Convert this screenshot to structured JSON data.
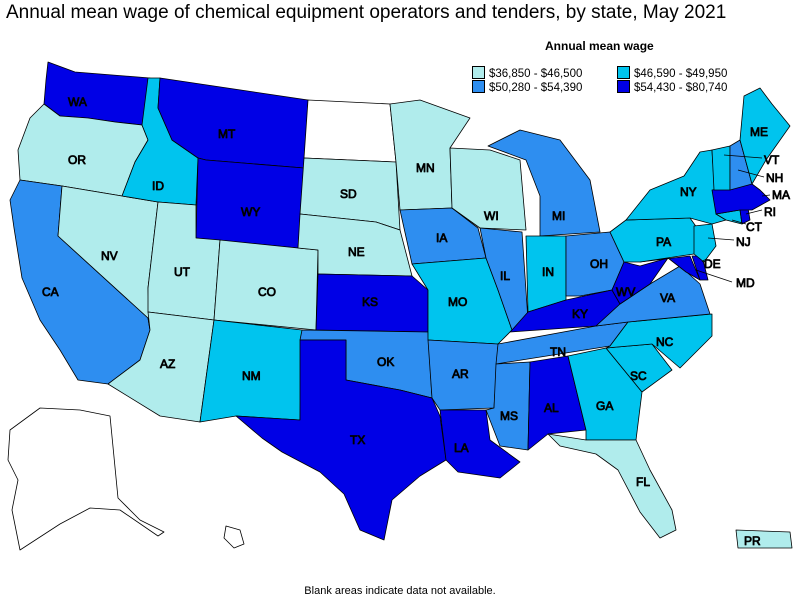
{
  "title": "Annual mean wage of chemical equipment operators and tenders, by state, May 2021",
  "legend": {
    "title": "Annual mean wage",
    "items": [
      {
        "label": "$36,850 - $46,500",
        "color": "#b0ecec"
      },
      {
        "label": "$46,590 - $49,950",
        "color": "#00c4ee"
      },
      {
        "label": "$50,280 - $54,390",
        "color": "#2e8ef0"
      },
      {
        "label": "$54,430 - $80,740",
        "color": "#0000e6"
      }
    ]
  },
  "no_data_color": "#ffffff",
  "note": "Blank areas indicate data not available.",
  "states": {
    "WA": 3,
    "OR": 0,
    "CA": 2,
    "NV": 0,
    "ID": 1,
    "MT": 3,
    "WY": 3,
    "UT": 0,
    "AZ": 0,
    "CO": 0,
    "NM": 1,
    "ND": null,
    "SD": 0,
    "NE": 0,
    "KS": 3,
    "OK": 2,
    "TX": 3,
    "MN": 0,
    "IA": 2,
    "MO": 1,
    "AR": 2,
    "LA": 3,
    "WI": 0,
    "IL": 2,
    "MI": 2,
    "IN": 1,
    "OH": 2,
    "KY": 3,
    "TN": 2,
    "MS": 2,
    "AL": 3,
    "GA": 1,
    "FL": 0,
    "SC": 1,
    "NC": 1,
    "VA": 2,
    "WV": 3,
    "PA": 1,
    "NY": 1,
    "ME": 1,
    "VT": 1,
    "NH": 2,
    "MA": 3,
    "RI": 3,
    "CT": 1,
    "NJ": 1,
    "DE": 3,
    "MD": 3,
    "PR": 0,
    "AK": null,
    "HI": null
  }
}
